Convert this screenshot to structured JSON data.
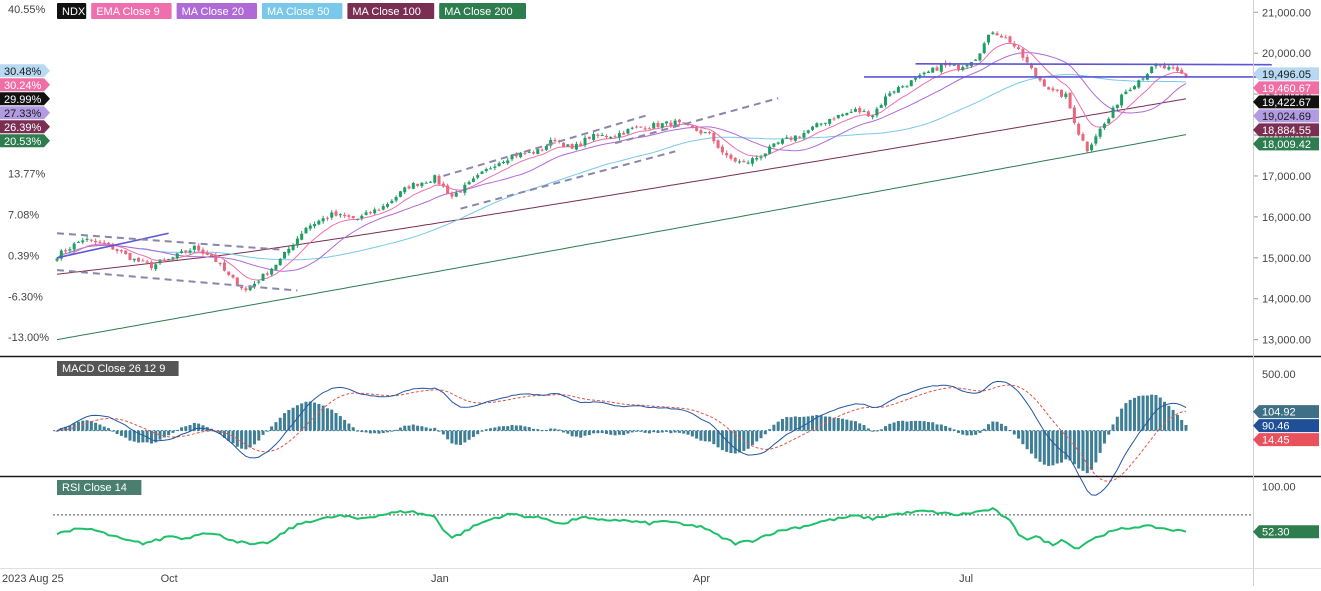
{
  "chart_data": [
    {
      "type": "candlestick",
      "panel": "price",
      "legend": {
        "symbol": {
          "label": "NDX",
          "color": "#111111"
        },
        "items": [
          {
            "label": "EMA Close 9",
            "color": "#ef6fae"
          },
          {
            "label": "MA Close 20",
            "color": "#b06ad8"
          },
          {
            "label": "MA Close 50",
            "color": "#79c8ea"
          },
          {
            "label": "MA Close 100",
            "color": "#7a2f52"
          },
          {
            "label": "MA Close 200",
            "color": "#2e7d4f"
          }
        ]
      },
      "colors": {
        "up": "#1f9e63",
        "down": "#e8677d"
      },
      "ylim": [
        12600,
        21300
      ],
      "y_ticks": [
        13000,
        14000,
        15000,
        16000,
        17000,
        18000,
        19000,
        20000,
        21000
      ],
      "y_tick_labels": [
        "13,000.00",
        "14,000.00",
        "15,000.00",
        "16,000.00",
        "17,000.00",
        "18,000.00",
        "19,000.00",
        "20,000.00",
        "21,000.00"
      ],
      "pct_ticks": [
        {
          "label": "40.55%",
          "value": 21080
        },
        {
          "label": "13.77%",
          "value": 17060
        },
        {
          "label": "7.08%",
          "value": 16060
        },
        {
          "label": "0.39%",
          "value": 15060
        },
        {
          "label": "-6.30%",
          "value": 14060
        },
        {
          "label": "-13.00%",
          "value": 13060
        }
      ],
      "pct_badges": [
        {
          "label": "30.48%",
          "value": 19570,
          "color": "#b7daf2",
          "text": "#1a1a1a"
        },
        {
          "label": "30.24%",
          "value": 19535,
          "color": "#f06ea3",
          "text": "#ffffff"
        },
        {
          "label": "29.99%",
          "value": 19498,
          "color": "#111111",
          "text": "#ffffff"
        },
        {
          "label": "27.33%",
          "value": 19100,
          "color": "#b39be3",
          "text": "#1a1a1a"
        },
        {
          "label": "26.39%",
          "value": 18960,
          "color": "#7a2f52",
          "text": "#ffffff"
        },
        {
          "label": "20.53%",
          "value": 18080,
          "color": "#2e7d4f",
          "text": "#ffffff"
        }
      ],
      "last_values": [
        {
          "label": "19,496.05",
          "value": 19496.05,
          "color": "#b7daf2",
          "text": "#1a1a1a"
        },
        {
          "label": "19,460.67",
          "value": 19460.67,
          "color": "#f06ea3",
          "text": "#ffffff"
        },
        {
          "label": "19,422.67",
          "value": 19422.67,
          "color": "#111111",
          "text": "#ffffff"
        },
        {
          "label": "19,024.69",
          "value": 19024.69,
          "color": "#b39be3",
          "text": "#1a1a1a"
        },
        {
          "label": "18,884.55",
          "value": 18884.55,
          "color": "#7a2f52",
          "text": "#ffffff"
        },
        {
          "label": "18,009.42",
          "value": 18009.42,
          "color": "#2e7d4f",
          "text": "#ffffff"
        }
      ],
      "trendlines": [
        {
          "style": "solid",
          "color": "#5a56d6",
          "from": [
            0,
            15000
          ],
          "to": [
            26,
            15600
          ]
        },
        {
          "style": "solid",
          "color": "#5a56d6",
          "from": [
            200,
            19740
          ],
          "to": [
            283,
            19720
          ]
        },
        {
          "style": "solid",
          "color": "#5a56d6",
          "from": [
            188,
            19420
          ],
          "to": [
            283,
            19420
          ]
        },
        {
          "style": "dashed",
          "color": "#8a86a8",
          "from": [
            0,
            15600
          ],
          "to": [
            52,
            15200
          ]
        },
        {
          "style": "dashed",
          "color": "#8a86a8",
          "from": [
            0,
            14700
          ],
          "to": [
            56,
            14200
          ]
        },
        {
          "style": "dashed",
          "color": "#8a86a8",
          "from": [
            90,
            17000
          ],
          "to": [
            138,
            18500
          ]
        },
        {
          "style": "dashed",
          "color": "#8a86a8",
          "from": [
            94,
            16200
          ],
          "to": [
            144,
            17600
          ]
        },
        {
          "style": "dashed",
          "color": "#8a86a8",
          "from": [
            130,
            17800
          ],
          "to": [
            168,
            18900
          ]
        }
      ],
      "x_ticks": [
        {
          "label": "2023 Aug 25",
          "index": 0
        },
        {
          "label": "Oct",
          "index": 26
        },
        {
          "label": "Jan",
          "index": 89
        },
        {
          "label": "Apr",
          "index": 150
        },
        {
          "label": "Jul",
          "index": 212
        }
      ]
    },
    {
      "type": "macd",
      "panel": "macd",
      "label": "MACD Close 26 12 9",
      "colors": {
        "macd": "#2456a4",
        "signal": "#e0554a",
        "hist": "#3f7f96"
      },
      "ylim": [
        -400,
        650
      ],
      "y_ticks": [
        500
      ],
      "y_tick_labels": [
        "500.00"
      ],
      "badges": [
        {
          "label": "104.92",
          "value": 104.92,
          "color": "#3f6f86",
          "text": "#ffffff"
        },
        {
          "label": "90.46",
          "value": 90.46,
          "color": "#1f4f98",
          "text": "#ffffff"
        },
        {
          "label": "14.45",
          "value": 14.45,
          "color": "#e9525d",
          "text": "#ffffff"
        }
      ]
    },
    {
      "type": "line",
      "panel": "rsi",
      "label": "RSI Close 14",
      "color": "#1fc06a",
      "ylim": [
        14,
        110
      ],
      "y_ticks": [
        100
      ],
      "y_tick_labels": [
        "100.00"
      ],
      "reference_level": 70,
      "badge": {
        "label": "52.30",
        "value": 52.3,
        "color": "#2e7d4f",
        "text": "#ffffff"
      }
    }
  ],
  "close_knots": [
    [
      0,
      15050
    ],
    [
      6,
      15450
    ],
    [
      12,
      15300
    ],
    [
      18,
      14950
    ],
    [
      22,
      14800
    ],
    [
      26,
      14950
    ],
    [
      32,
      15250
    ],
    [
      36,
      15050
    ],
    [
      40,
      14550
    ],
    [
      44,
      14200
    ],
    [
      48,
      14550
    ],
    [
      52,
      14950
    ],
    [
      58,
      15750
    ],
    [
      64,
      16050
    ],
    [
      70,
      15950
    ],
    [
      76,
      16250
    ],
    [
      82,
      16750
    ],
    [
      88,
      16950
    ],
    [
      92,
      16500
    ],
    [
      96,
      16800
    ],
    [
      102,
      17300
    ],
    [
      106,
      17500
    ],
    [
      112,
      17600
    ],
    [
      116,
      17900
    ],
    [
      120,
      17650
    ],
    [
      124,
      17950
    ],
    [
      130,
      18000
    ],
    [
      134,
      18150
    ],
    [
      140,
      18250
    ],
    [
      144,
      18300
    ],
    [
      148,
      18150
    ],
    [
      152,
      18000
    ],
    [
      156,
      17450
    ],
    [
      160,
      17300
    ],
    [
      164,
      17500
    ],
    [
      168,
      17800
    ],
    [
      174,
      18050
    ],
    [
      180,
      18400
    ],
    [
      186,
      18600
    ],
    [
      190,
      18500
    ],
    [
      194,
      19050
    ],
    [
      200,
      19350
    ],
    [
      206,
      19700
    ],
    [
      210,
      19650
    ],
    [
      214,
      19900
    ],
    [
      218,
      20550
    ],
    [
      222,
      20300
    ],
    [
      225,
      19900
    ],
    [
      228,
      19450
    ],
    [
      232,
      19050
    ],
    [
      235,
      18950
    ],
    [
      238,
      18050
    ],
    [
      240,
      17650
    ],
    [
      242,
      18000
    ],
    [
      245,
      18400
    ],
    [
      248,
      19000
    ],
    [
      252,
      19350
    ],
    [
      256,
      19700
    ],
    [
      260,
      19580
    ],
    [
      263,
      19422.67
    ]
  ],
  "rsi_knots": [
    [
      0,
      50
    ],
    [
      3,
      54
    ],
    [
      8,
      55
    ],
    [
      12,
      49
    ],
    [
      16,
      43
    ],
    [
      20,
      40
    ],
    [
      24,
      44
    ],
    [
      26,
      48
    ],
    [
      30,
      45
    ],
    [
      34,
      52
    ],
    [
      38,
      48
    ],
    [
      42,
      42
    ],
    [
      46,
      38
    ],
    [
      50,
      42
    ],
    [
      54,
      55
    ],
    [
      58,
      63
    ],
    [
      62,
      66
    ],
    [
      66,
      69
    ],
    [
      70,
      66
    ],
    [
      74,
      69
    ],
    [
      78,
      72
    ],
    [
      82,
      74
    ],
    [
      86,
      70
    ],
    [
      88,
      68
    ],
    [
      90,
      55
    ],
    [
      92,
      46
    ],
    [
      94,
      50
    ],
    [
      98,
      60
    ],
    [
      102,
      67
    ],
    [
      106,
      71
    ],
    [
      110,
      68
    ],
    [
      114,
      66
    ],
    [
      118,
      60
    ],
    [
      122,
      68
    ],
    [
      126,
      64
    ],
    [
      130,
      65
    ],
    [
      134,
      63
    ],
    [
      138,
      61
    ],
    [
      142,
      64
    ],
    [
      146,
      59
    ],
    [
      150,
      58
    ],
    [
      154,
      48
    ],
    [
      158,
      40
    ],
    [
      162,
      43
    ],
    [
      166,
      50
    ],
    [
      170,
      55
    ],
    [
      174,
      58
    ],
    [
      178,
      63
    ],
    [
      182,
      66
    ],
    [
      186,
      69
    ],
    [
      190,
      66
    ],
    [
      194,
      70
    ],
    [
      198,
      72
    ],
    [
      202,
      74
    ],
    [
      206,
      72
    ],
    [
      210,
      70
    ],
    [
      214,
      73
    ],
    [
      218,
      76
    ],
    [
      220,
      70
    ],
    [
      222,
      63
    ],
    [
      224,
      50
    ],
    [
      226,
      45
    ],
    [
      228,
      47
    ],
    [
      230,
      43
    ],
    [
      232,
      38
    ],
    [
      234,
      45
    ],
    [
      236,
      38
    ],
    [
      238,
      35
    ],
    [
      240,
      42
    ],
    [
      244,
      50
    ],
    [
      248,
      55
    ],
    [
      252,
      58
    ],
    [
      256,
      57
    ],
    [
      260,
      54
    ],
    [
      263,
      52.3
    ]
  ]
}
